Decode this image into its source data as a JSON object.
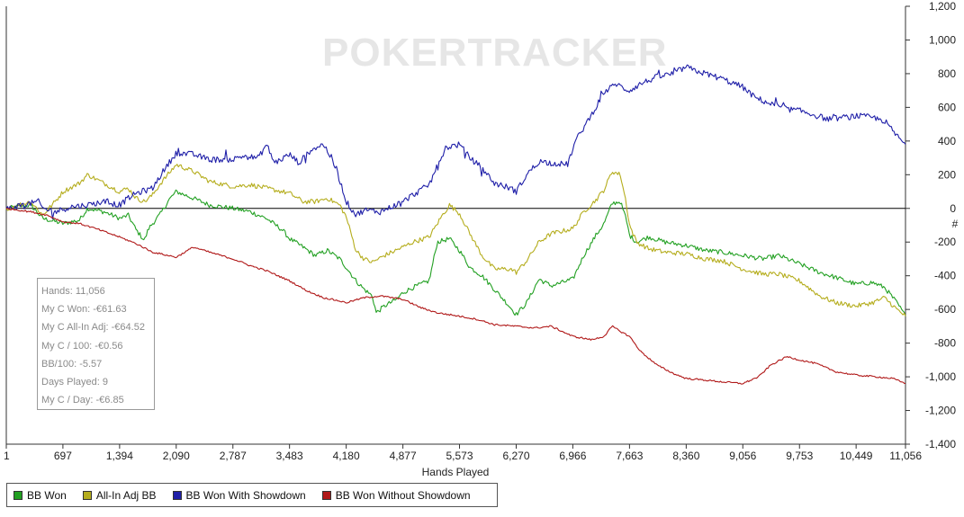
{
  "watermark": "POKERTRACKER",
  "stats": {
    "hands": "Hands: 11,056",
    "won": "My C Won: -€61.63",
    "allin": "My C All-In Adj: -€64.52",
    "per100": "My C / 100: -€0.56",
    "bb100": "BB/100: -5.57",
    "days": "Days Played: 9",
    "per_day": "My C / Day: -€6.85"
  },
  "chart_data": {
    "type": "line",
    "xlabel": "Hands Played",
    "ylabel": "#",
    "xlim": [
      1,
      11056
    ],
    "ylim": [
      -1400,
      1200
    ],
    "x_ticks": [
      1,
      697,
      1394,
      2090,
      2787,
      3483,
      4180,
      4877,
      5573,
      6270,
      6966,
      7663,
      8360,
      9056,
      9753,
      10449,
      11056
    ],
    "x_tick_labels": [
      "1",
      "697",
      "1,394",
      "2,090",
      "2,787",
      "3,483",
      "4,180",
      "4,877",
      "5,573",
      "6,270",
      "6,966",
      "7,663",
      "8,360",
      "9,056",
      "9,753",
      "10,449",
      "11,056"
    ],
    "y_ticks": [
      1200,
      1000,
      800,
      600,
      400,
      200,
      0,
      -200,
      -400,
      -600,
      -800,
      -1000,
      -1200,
      -1400
    ],
    "y_tick_labels": [
      "1,200",
      "1,000",
      "800",
      "600",
      "400",
      "200",
      "0",
      "-200",
      "-400",
      "-600",
      "-800",
      "-1,000",
      "-1,200",
      "-1,400"
    ],
    "grid": false,
    "legend_position": "bottom-left",
    "series": [
      {
        "name": "BB Won",
        "color": "#22a022",
        "points": [
          [
            1,
            0
          ],
          [
            300,
            20
          ],
          [
            450,
            -60
          ],
          [
            700,
            -90
          ],
          [
            900,
            -70
          ],
          [
            1000,
            0
          ],
          [
            1200,
            -20
          ],
          [
            1400,
            -60
          ],
          [
            1500,
            -40
          ],
          [
            1600,
            -130
          ],
          [
            1700,
            -190
          ],
          [
            1750,
            -120
          ],
          [
            1900,
            -30
          ],
          [
            2000,
            50
          ],
          [
            2090,
            100
          ],
          [
            2300,
            60
          ],
          [
            2500,
            20
          ],
          [
            2787,
            0
          ],
          [
            3000,
            -20
          ],
          [
            3200,
            -60
          ],
          [
            3400,
            -130
          ],
          [
            3483,
            -180
          ],
          [
            3650,
            -230
          ],
          [
            3800,
            -280
          ],
          [
            3950,
            -250
          ],
          [
            4100,
            -300
          ],
          [
            4180,
            -350
          ],
          [
            4300,
            -430
          ],
          [
            4400,
            -480
          ],
          [
            4500,
            -520
          ],
          [
            4550,
            -620
          ],
          [
            4650,
            -580
          ],
          [
            4800,
            -540
          ],
          [
            4877,
            -500
          ],
          [
            5000,
            -470
          ],
          [
            5200,
            -430
          ],
          [
            5300,
            -200
          ],
          [
            5450,
            -180
          ],
          [
            5573,
            -250
          ],
          [
            5700,
            -350
          ],
          [
            5850,
            -400
          ],
          [
            6000,
            -480
          ],
          [
            6150,
            -560
          ],
          [
            6270,
            -630
          ],
          [
            6400,
            -560
          ],
          [
            6550,
            -420
          ],
          [
            6700,
            -460
          ],
          [
            6966,
            -420
          ],
          [
            7100,
            -280
          ],
          [
            7250,
            -160
          ],
          [
            7350,
            -90
          ],
          [
            7450,
            30
          ],
          [
            7550,
            40
          ],
          [
            7620,
            -60
          ],
          [
            7663,
            -160
          ],
          [
            7750,
            -200
          ],
          [
            7900,
            -170
          ],
          [
            8100,
            -200
          ],
          [
            8360,
            -220
          ],
          [
            8600,
            -250
          ],
          [
            8800,
            -260
          ],
          [
            9056,
            -280
          ],
          [
            9300,
            -300
          ],
          [
            9500,
            -280
          ],
          [
            9753,
            -330
          ],
          [
            10000,
            -380
          ],
          [
            10200,
            -410
          ],
          [
            10449,
            -450
          ],
          [
            10650,
            -440
          ],
          [
            10800,
            -470
          ],
          [
            10950,
            -560
          ],
          [
            11056,
            -640
          ]
        ]
      },
      {
        "name": "All-In Adj BB",
        "color": "#b5ad1d",
        "points": [
          [
            1,
            0
          ],
          [
            300,
            40
          ],
          [
            450,
            -40
          ],
          [
            600,
            40
          ],
          [
            700,
            100
          ],
          [
            900,
            150
          ],
          [
            1000,
            200
          ],
          [
            1200,
            150
          ],
          [
            1394,
            100
          ],
          [
            1500,
            120
          ],
          [
            1600,
            60
          ],
          [
            1700,
            40
          ],
          [
            1800,
            80
          ],
          [
            1900,
            150
          ],
          [
            2090,
            260
          ],
          [
            2300,
            220
          ],
          [
            2500,
            160
          ],
          [
            2787,
            130
          ],
          [
            3000,
            140
          ],
          [
            3200,
            120
          ],
          [
            3483,
            90
          ],
          [
            3650,
            40
          ],
          [
            3800,
            40
          ],
          [
            3950,
            60
          ],
          [
            4100,
            20
          ],
          [
            4180,
            -50
          ],
          [
            4300,
            -250
          ],
          [
            4400,
            -300
          ],
          [
            4500,
            -320
          ],
          [
            4650,
            -280
          ],
          [
            4877,
            -230
          ],
          [
            5000,
            -200
          ],
          [
            5200,
            -170
          ],
          [
            5350,
            -50
          ],
          [
            5450,
            20
          ],
          [
            5573,
            -30
          ],
          [
            5700,
            -150
          ],
          [
            5850,
            -280
          ],
          [
            6000,
            -360
          ],
          [
            6200,
            -360
          ],
          [
            6270,
            -380
          ],
          [
            6400,
            -310
          ],
          [
            6550,
            -200
          ],
          [
            6700,
            -150
          ],
          [
            6966,
            -120
          ],
          [
            7100,
            -20
          ],
          [
            7250,
            50
          ],
          [
            7350,
            110
          ],
          [
            7450,
            220
          ],
          [
            7550,
            200
          ],
          [
            7620,
            40
          ],
          [
            7663,
            -100
          ],
          [
            7750,
            -200
          ],
          [
            7900,
            -240
          ],
          [
            8100,
            -260
          ],
          [
            8360,
            -270
          ],
          [
            8600,
            -300
          ],
          [
            8800,
            -310
          ],
          [
            9056,
            -360
          ],
          [
            9300,
            -390
          ],
          [
            9500,
            -390
          ],
          [
            9753,
            -430
          ],
          [
            10000,
            -520
          ],
          [
            10200,
            -560
          ],
          [
            10449,
            -580
          ],
          [
            10650,
            -560
          ],
          [
            10800,
            -530
          ],
          [
            10950,
            -600
          ],
          [
            11056,
            -640
          ]
        ]
      },
      {
        "name": "BB Won With Showdown",
        "color": "#1f1fa8",
        "points": [
          [
            1,
            0
          ],
          [
            200,
            20
          ],
          [
            400,
            40
          ],
          [
            450,
            0
          ],
          [
            600,
            -20
          ],
          [
            800,
            10
          ],
          [
            1000,
            20
          ],
          [
            1200,
            40
          ],
          [
            1394,
            20
          ],
          [
            1500,
            60
          ],
          [
            1600,
            90
          ],
          [
            1800,
            120
          ],
          [
            1900,
            200
          ],
          [
            2090,
            330
          ],
          [
            2300,
            320
          ],
          [
            2500,
            290
          ],
          [
            2787,
            290
          ],
          [
            2900,
            310
          ],
          [
            3100,
            300
          ],
          [
            3200,
            380
          ],
          [
            3300,
            270
          ],
          [
            3483,
            320
          ],
          [
            3600,
            270
          ],
          [
            3750,
            350
          ],
          [
            3900,
            380
          ],
          [
            4000,
            300
          ],
          [
            4100,
            170
          ],
          [
            4180,
            40
          ],
          [
            4300,
            -40
          ],
          [
            4400,
            -10
          ],
          [
            4600,
            -20
          ],
          [
            4877,
            40
          ],
          [
            5000,
            80
          ],
          [
            5200,
            140
          ],
          [
            5300,
            250
          ],
          [
            5400,
            360
          ],
          [
            5573,
            380
          ],
          [
            5700,
            300
          ],
          [
            5850,
            240
          ],
          [
            6000,
            150
          ],
          [
            6200,
            120
          ],
          [
            6270,
            100
          ],
          [
            6400,
            200
          ],
          [
            6550,
            280
          ],
          [
            6700,
            270
          ],
          [
            6900,
            260
          ],
          [
            7000,
            400
          ],
          [
            7200,
            560
          ],
          [
            7350,
            690
          ],
          [
            7500,
            740
          ],
          [
            7600,
            710
          ],
          [
            7663,
            700
          ],
          [
            7800,
            740
          ],
          [
            8000,
            780
          ],
          [
            8200,
            800
          ],
          [
            8360,
            840
          ],
          [
            8450,
            820
          ],
          [
            8600,
            800
          ],
          [
            8800,
            770
          ],
          [
            9056,
            720
          ],
          [
            9200,
            660
          ],
          [
            9400,
            620
          ],
          [
            9600,
            590
          ],
          [
            9753,
            580
          ],
          [
            9900,
            560
          ],
          [
            10100,
            530
          ],
          [
            10300,
            540
          ],
          [
            10449,
            550
          ],
          [
            10650,
            540
          ],
          [
            10800,
            520
          ],
          [
            10950,
            430
          ],
          [
            11056,
            380
          ]
        ]
      },
      {
        "name": "BB Won Without Showdown",
        "color": "#b01818",
        "points": [
          [
            1,
            0
          ],
          [
            300,
            -20
          ],
          [
            500,
            -40
          ],
          [
            700,
            -80
          ],
          [
            900,
            -90
          ],
          [
            1100,
            -120
          ],
          [
            1394,
            -170
          ],
          [
            1600,
            -210
          ],
          [
            1800,
            -260
          ],
          [
            2090,
            -290
          ],
          [
            2300,
            -230
          ],
          [
            2500,
            -260
          ],
          [
            2787,
            -300
          ],
          [
            3000,
            -340
          ],
          [
            3200,
            -370
          ],
          [
            3483,
            -430
          ],
          [
            3700,
            -490
          ],
          [
            3900,
            -530
          ],
          [
            4100,
            -550
          ],
          [
            4180,
            -560
          ],
          [
            4400,
            -530
          ],
          [
            4600,
            -520
          ],
          [
            4877,
            -540
          ],
          [
            5100,
            -590
          ],
          [
            5300,
            -620
          ],
          [
            5573,
            -640
          ],
          [
            5800,
            -660
          ],
          [
            6000,
            -690
          ],
          [
            6270,
            -700
          ],
          [
            6500,
            -710
          ],
          [
            6700,
            -700
          ],
          [
            6966,
            -760
          ],
          [
            7200,
            -780
          ],
          [
            7350,
            -760
          ],
          [
            7450,
            -700
          ],
          [
            7550,
            -730
          ],
          [
            7663,
            -760
          ],
          [
            7800,
            -850
          ],
          [
            8000,
            -930
          ],
          [
            8200,
            -980
          ],
          [
            8360,
            -1010
          ],
          [
            8600,
            -1020
          ],
          [
            8800,
            -1030
          ],
          [
            9056,
            -1040
          ],
          [
            9250,
            -1000
          ],
          [
            9400,
            -930
          ],
          [
            9600,
            -880
          ],
          [
            9753,
            -900
          ],
          [
            9950,
            -920
          ],
          [
            10200,
            -970
          ],
          [
            10449,
            -990
          ],
          [
            10700,
            -1000
          ],
          [
            10900,
            -1010
          ],
          [
            11056,
            -1040
          ]
        ]
      }
    ]
  }
}
